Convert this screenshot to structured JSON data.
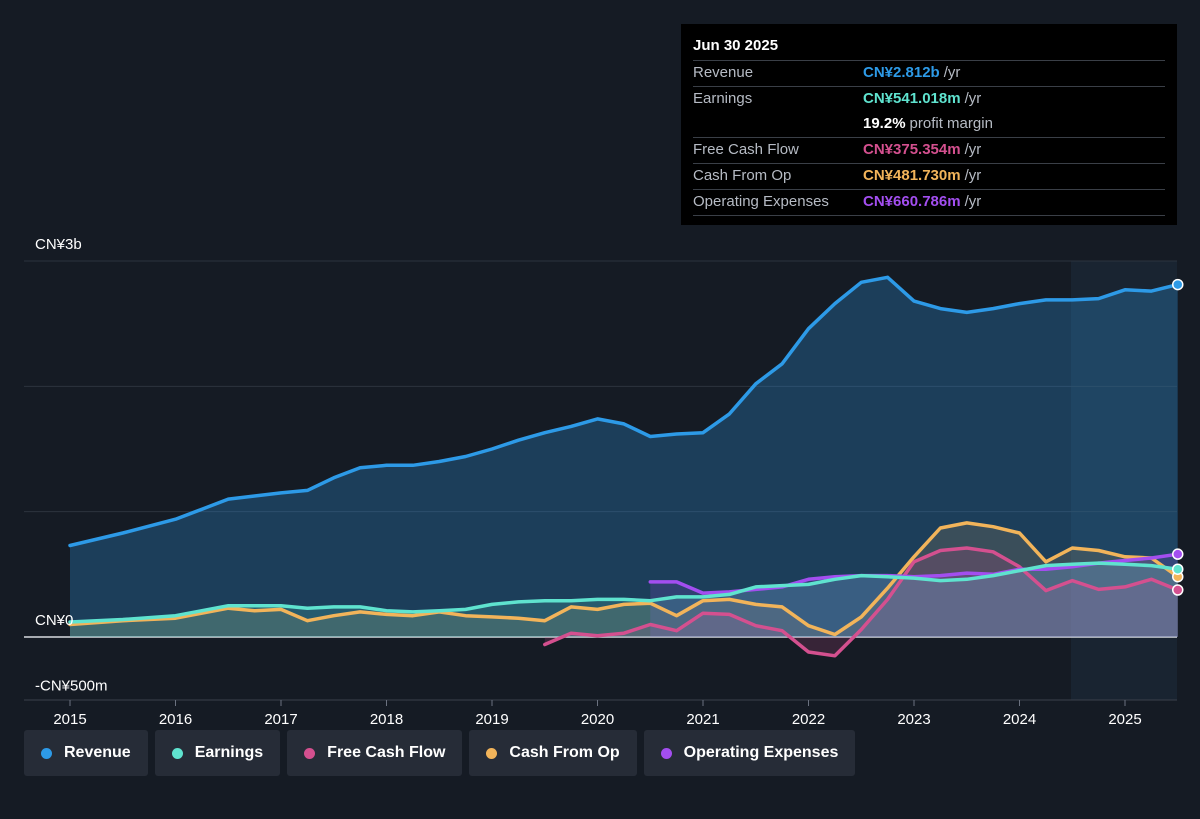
{
  "tooltip": {
    "date": "Jun 30 2025",
    "rows": [
      {
        "name": "Revenue",
        "value": "CN¥2.812b",
        "unit": "/yr",
        "color": "#2d9ae7"
      },
      {
        "name": "Earnings",
        "value": "CN¥541.018m",
        "unit": "/yr",
        "color": "#5fe3cf"
      },
      {
        "name": "",
        "value": "19.2%",
        "unit": "profit margin",
        "color": "#ffffff"
      },
      {
        "name": "Free Cash Flow",
        "value": "CN¥375.354m",
        "unit": "/yr",
        "color": "#d4508f"
      },
      {
        "name": "Cash From Op",
        "value": "CN¥481.730m",
        "unit": "/yr",
        "color": "#f2b45a"
      },
      {
        "name": "Operating Expenses",
        "value": "CN¥660.786m",
        "unit": "/yr",
        "color": "#a34ef0"
      }
    ]
  },
  "legend": [
    {
      "label": "Revenue",
      "color": "#2d9ae7"
    },
    {
      "label": "Earnings",
      "color": "#5fe3cf"
    },
    {
      "label": "Free Cash Flow",
      "color": "#d4508f"
    },
    {
      "label": "Cash From Op",
      "color": "#f2b45a"
    },
    {
      "label": "Operating Expenses",
      "color": "#a34ef0"
    }
  ],
  "chart_data": {
    "type": "area",
    "unit": "CN¥ millions",
    "y_ticks": [
      {
        "value": 3000,
        "label": "CN¥3b"
      },
      {
        "value": 0,
        "label": "CN¥0"
      },
      {
        "value": -500,
        "label": "-CN¥500m"
      }
    ],
    "ylim": [
      -500,
      3000
    ],
    "xlim": [
      2015,
      2025.5
    ],
    "x_ticks": [
      "2015",
      "2016",
      "2017",
      "2018",
      "2019",
      "2020",
      "2021",
      "2022",
      "2023",
      "2024",
      "2025"
    ],
    "forecast_start": 2024.5,
    "grid": true,
    "series": [
      {
        "name": "Revenue",
        "color": "#2d9ae7",
        "x": [
          2015.0,
          2015.5,
          2016.0,
          2016.25,
          2016.5,
          2016.75,
          2017.0,
          2017.25,
          2017.5,
          2017.75,
          2018.0,
          2018.25,
          2018.5,
          2018.75,
          2019.0,
          2019.25,
          2019.5,
          2019.75,
          2020.0,
          2020.25,
          2020.5,
          2020.75,
          2021.0,
          2021.25,
          2021.5,
          2021.75,
          2022.0,
          2022.25,
          2022.5,
          2022.75,
          2023.0,
          2023.25,
          2023.5,
          2023.75,
          2024.0,
          2024.25,
          2024.5,
          2024.75,
          2025.0,
          2025.25,
          2025.5
        ],
        "y": [
          730,
          830,
          940,
          1020,
          1100,
          1125,
          1150,
          1170,
          1270,
          1350,
          1370,
          1370,
          1400,
          1440,
          1500,
          1570,
          1630,
          1680,
          1740,
          1700,
          1600,
          1620,
          1630,
          1780,
          2020,
          2180,
          2460,
          2660,
          2830,
          2870,
          2680,
          2620,
          2590,
          2620,
          2660,
          2690,
          2690,
          2700,
          2770,
          2760,
          2812
        ]
      },
      {
        "name": "Earnings",
        "color": "#5fe3cf",
        "x": [
          2015.0,
          2015.5,
          2016.0,
          2016.25,
          2016.5,
          2016.75,
          2017.0,
          2017.25,
          2017.5,
          2017.75,
          2018.0,
          2018.25,
          2018.5,
          2018.75,
          2019.0,
          2019.25,
          2019.5,
          2019.75,
          2020.0,
          2020.25,
          2020.5,
          2020.75,
          2021.0,
          2021.25,
          2021.5,
          2021.75,
          2022.0,
          2022.25,
          2022.5,
          2022.75,
          2023.0,
          2023.25,
          2023.5,
          2023.75,
          2024.0,
          2024.25,
          2024.5,
          2024.75,
          2025.0,
          2025.25,
          2025.5
        ],
        "y": [
          120,
          140,
          170,
          210,
          250,
          250,
          250,
          230,
          240,
          240,
          210,
          200,
          210,
          220,
          260,
          280,
          290,
          290,
          300,
          300,
          290,
          320,
          320,
          340,
          400,
          410,
          420,
          460,
          490,
          480,
          470,
          450,
          460,
          490,
          530,
          570,
          580,
          590,
          580,
          570,
          541
        ]
      },
      {
        "name": "Free Cash Flow",
        "color": "#d4508f",
        "x": [
          2019.5,
          2019.75,
          2020.0,
          2020.25,
          2020.5,
          2020.75,
          2021.0,
          2021.25,
          2021.5,
          2021.75,
          2022.0,
          2022.25,
          2022.5,
          2022.75,
          2023.0,
          2023.25,
          2023.5,
          2023.75,
          2024.0,
          2024.25,
          2024.5,
          2024.75,
          2025.0,
          2025.25,
          2025.5
        ],
        "y": [
          -60,
          30,
          10,
          30,
          100,
          50,
          190,
          180,
          90,
          50,
          -120,
          -150,
          60,
          300,
          600,
          690,
          710,
          680,
          560,
          370,
          450,
          380,
          400,
          460,
          375
        ]
      },
      {
        "name": "Cash From Op",
        "color": "#f2b45a",
        "x": [
          2015.0,
          2015.5,
          2016.0,
          2016.25,
          2016.5,
          2016.75,
          2017.0,
          2017.25,
          2017.5,
          2017.75,
          2018.0,
          2018.25,
          2018.5,
          2018.75,
          2019.0,
          2019.25,
          2019.5,
          2019.75,
          2020.0,
          2020.25,
          2020.5,
          2020.75,
          2021.0,
          2021.25,
          2021.5,
          2021.75,
          2022.0,
          2022.25,
          2022.5,
          2022.75,
          2023.0,
          2023.25,
          2023.5,
          2023.75,
          2024.0,
          2024.25,
          2024.5,
          2024.75,
          2025.0,
          2025.25,
          2025.5
        ],
        "y": [
          100,
          130,
          150,
          190,
          230,
          210,
          220,
          130,
          170,
          200,
          180,
          170,
          200,
          170,
          160,
          150,
          130,
          240,
          220,
          260,
          270,
          170,
          290,
          300,
          260,
          240,
          90,
          20,
          160,
          390,
          640,
          870,
          910,
          880,
          830,
          600,
          710,
          690,
          640,
          630,
          481
        ]
      },
      {
        "name": "Operating Expenses",
        "color": "#a34ef0",
        "x": [
          2020.5,
          2020.75,
          2021.0,
          2021.25,
          2021.5,
          2021.75,
          2022.0,
          2022.25,
          2022.5,
          2022.75,
          2023.0,
          2023.25,
          2023.5,
          2023.75,
          2024.0,
          2024.25,
          2024.5,
          2024.75,
          2025.0,
          2025.25,
          2025.5
        ],
        "y": [
          440,
          440,
          350,
          360,
          380,
          400,
          460,
          480,
          490,
          490,
          480,
          490,
          510,
          500,
          540,
          540,
          560,
          590,
          610,
          630,
          660.786
        ]
      }
    ]
  }
}
